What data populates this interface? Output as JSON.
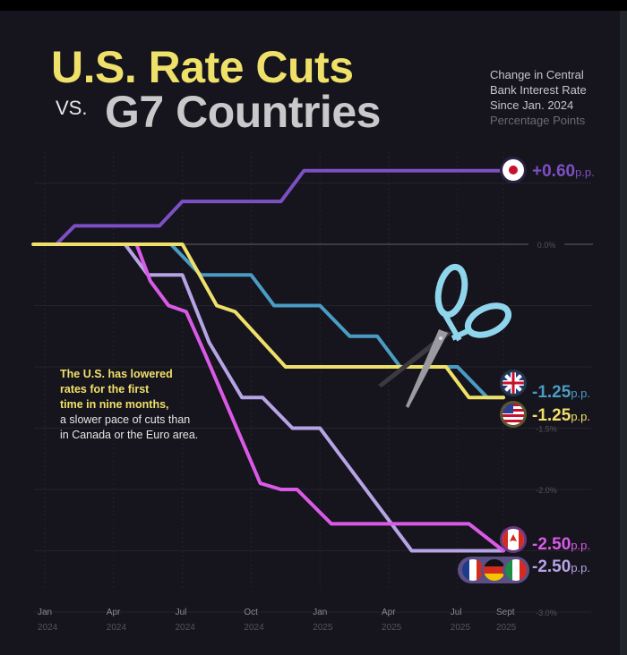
{
  "title": {
    "line1": "U.S. Rate Cuts",
    "vs": "VS.",
    "line2": "G7 Countries"
  },
  "subtitle": {
    "lines": [
      "Change in Central",
      "Bank Interest Rate",
      "Since Jan. 2024"
    ],
    "unit": "Percentage Points"
  },
  "annotation": {
    "highlight": [
      "The U.S. has lowered",
      "rates for the first",
      "time in nine months,"
    ],
    "rest": [
      "a slower pace of cuts than",
      "in Canada or the Euro area."
    ]
  },
  "chart_data": {
    "type": "line",
    "title": "U.S. Rate Cuts vs. G7 Countries",
    "ylabel": "Change in Central Bank Interest Rate Since Jan. 2024 (Percentage Points)",
    "ylim": [
      -3.0,
      0.8
    ],
    "y_tick_labels": [
      {
        "value": 0,
        "label": "0.0%"
      },
      {
        "value": -1.5,
        "label": "-1.5%"
      },
      {
        "value": -2.0,
        "label": "-2.0%"
      },
      {
        "value": -3.0,
        "label": "-3.0%"
      }
    ],
    "x_tick_labels": [
      {
        "date": "2024-01-01",
        "month": "Jan",
        "year": "2024"
      },
      {
        "date": "2024-04-01",
        "month": "Apr",
        "year": "2024"
      },
      {
        "date": "2024-07-01",
        "month": "Jul",
        "year": "2024"
      },
      {
        "date": "2024-10-01",
        "month": "Oct",
        "year": "2024"
      },
      {
        "date": "2025-01-01",
        "month": "Jan",
        "year": "2025"
      },
      {
        "date": "2025-04-01",
        "month": "Apr",
        "year": "2025"
      },
      {
        "date": "2025-07-01",
        "month": "Jul",
        "year": "2025"
      },
      {
        "date": "2025-09-01",
        "month": "Sept",
        "year": "2025"
      }
    ],
    "grid": true,
    "series": [
      {
        "key": "japan",
        "color": "#7d4fc4",
        "end_label": "+0.60",
        "unit": "p.p.",
        "flags": [
          "japan"
        ],
        "points": [
          [
            "2023-12-16",
            0
          ],
          [
            "2024-01-16",
            0
          ],
          [
            "2024-02-10",
            0.15
          ],
          [
            "2024-06-01",
            0.15
          ],
          [
            "2024-07-01",
            0.35
          ],
          [
            "2024-11-10",
            0.35
          ],
          [
            "2024-12-10",
            0.6
          ],
          [
            "2025-09-01",
            0.6
          ]
        ]
      },
      {
        "key": "uk",
        "color": "#4a9cc4",
        "end_label": "-1.25",
        "unit": "p.p.",
        "flags": [
          "uk"
        ],
        "points": [
          [
            "2023-12-16",
            0
          ],
          [
            "2024-06-16",
            0
          ],
          [
            "2024-07-25",
            -0.25
          ],
          [
            "2024-10-01",
            -0.25
          ],
          [
            "2024-11-01",
            -0.5
          ],
          [
            "2025-01-01",
            -0.5
          ],
          [
            "2025-02-10",
            -0.75
          ],
          [
            "2025-03-16",
            -0.75
          ],
          [
            "2025-04-16",
            -1.0
          ],
          [
            "2025-07-01",
            -1.0
          ],
          [
            "2025-08-10",
            -1.25
          ],
          [
            "2025-09-01",
            -1.25
          ]
        ]
      },
      {
        "key": "euro",
        "color": "#b7a4e6",
        "end_label": "-2.50",
        "unit": "p.p.",
        "flags": [
          "france",
          "germany",
          "italy"
        ],
        "points": [
          [
            "2024-04-16",
            0
          ],
          [
            "2024-05-16",
            -0.25
          ],
          [
            "2024-07-01",
            -0.25
          ],
          [
            "2024-08-06",
            -0.8
          ],
          [
            "2024-09-19",
            -1.25
          ],
          [
            "2024-10-16",
            -1.25
          ],
          [
            "2024-11-25",
            -1.5
          ],
          [
            "2025-01-01",
            -1.5
          ],
          [
            "2025-05-01",
            -2.5
          ],
          [
            "2025-09-01",
            -2.5
          ]
        ]
      },
      {
        "key": "canada",
        "color": "#d95ae6",
        "end_label": "-2.50",
        "unit": "p.p.",
        "flags": [
          "canada"
        ],
        "points": [
          [
            "2024-05-01",
            0
          ],
          [
            "2024-05-19",
            -0.3
          ],
          [
            "2024-06-13",
            -0.5
          ],
          [
            "2024-07-06",
            -0.55
          ],
          [
            "2024-08-01",
            -0.9
          ],
          [
            "2024-10-13",
            -1.95
          ],
          [
            "2024-11-10",
            -2.0
          ],
          [
            "2024-12-01",
            -2.0
          ],
          [
            "2025-01-16",
            -2.28
          ],
          [
            "2025-07-16",
            -2.28
          ],
          [
            "2025-09-01",
            -2.5
          ]
        ]
      },
      {
        "key": "us",
        "color": "#efe06a",
        "end_label": "-1.25",
        "unit": "p.p.",
        "flags": [
          "us"
        ],
        "points": [
          [
            "2023-12-16",
            0
          ],
          [
            "2024-07-01",
            0
          ],
          [
            "2024-07-10",
            -0.1
          ],
          [
            "2024-08-16",
            -0.5
          ],
          [
            "2024-09-10",
            -0.55
          ],
          [
            "2024-11-16",
            -1.0
          ],
          [
            "2025-06-16",
            -1.0
          ],
          [
            "2025-07-16",
            -1.25
          ],
          [
            "2025-09-01",
            -1.25
          ]
        ]
      }
    ]
  }
}
